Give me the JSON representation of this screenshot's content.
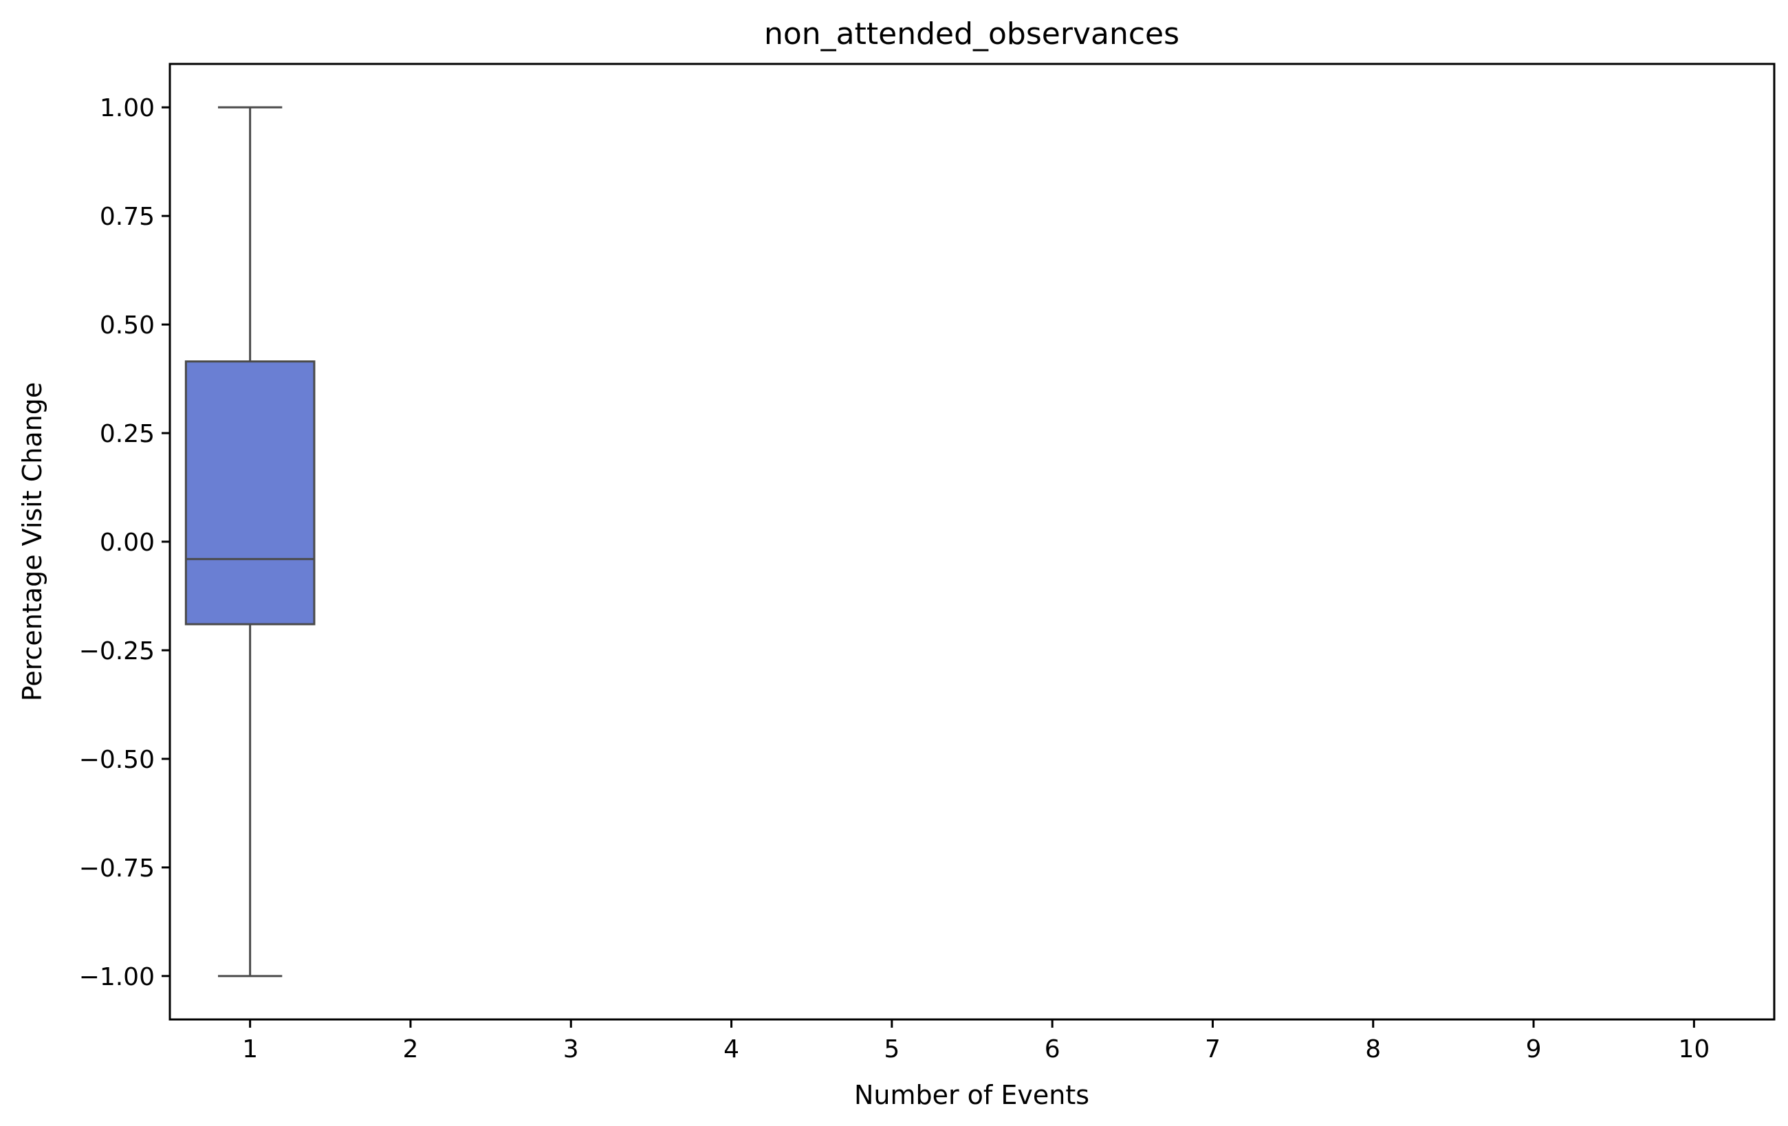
{
  "chart_data": {
    "type": "box",
    "title": "non_attended_observances",
    "xlabel": "Number of Events",
    "ylabel": "Percentage Visit Change",
    "categories": [
      "1",
      "2",
      "3",
      "4",
      "5",
      "6",
      "7",
      "8",
      "9",
      "10"
    ],
    "boxes": [
      {
        "category": "1",
        "whisker_low": -1.0,
        "q1": -0.19,
        "median": -0.04,
        "q3": 0.415,
        "whisker_high": 1.0
      }
    ],
    "ylim": [
      -1.1,
      1.1
    ],
    "yticks": [
      1.0,
      0.75,
      0.5,
      0.25,
      0.0,
      -0.25,
      -0.5,
      -0.75,
      -1.0
    ],
    "ytick_labels": [
      "1.00",
      "0.75",
      "0.50",
      "0.25",
      "0.00",
      "−0.25",
      "−0.50",
      "−0.75",
      "−1.00"
    ],
    "grid": false,
    "colors": {
      "box_fill": "#6a7fd3",
      "box_edge": "#4a4a4a",
      "axes": "#000000"
    }
  }
}
